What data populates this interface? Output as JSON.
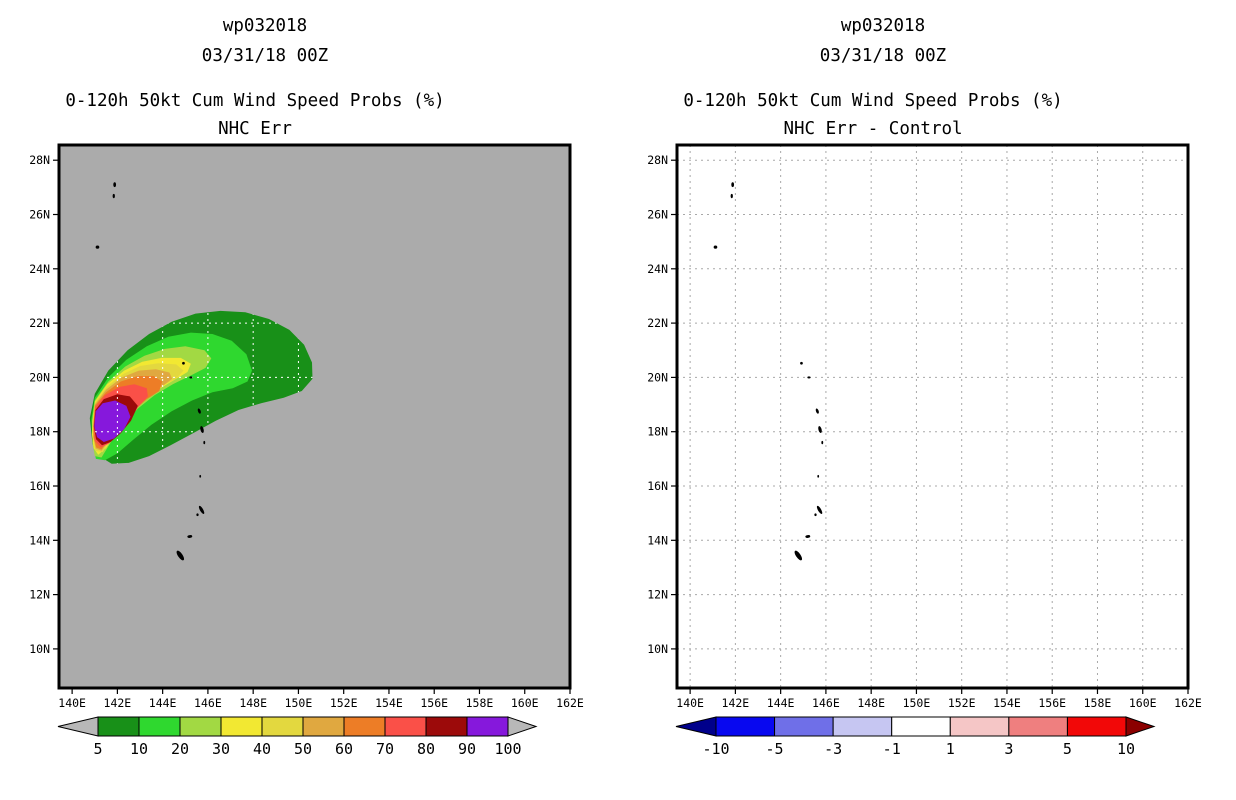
{
  "panels": [
    {
      "storm_id": "wp032018",
      "datetime": "03/31/18 00Z",
      "subtitle": "0-120h 50kt Cum Wind Speed Probs (%)",
      "subtitle2": "NHC Err"
    },
    {
      "storm_id": "wp032018",
      "datetime": "03/31/18 00Z",
      "subtitle": "0-120h 50kt Cum Wind Speed Probs (%)",
      "subtitle2": "NHC Err - Control"
    }
  ],
  "islands": [
    [
      141.88,
      27.1,
      0.12,
      0.18,
      0
    ],
    [
      141.84,
      26.68,
      0.1,
      0.16,
      0
    ],
    [
      141.12,
      24.8,
      0.16,
      0.12,
      0
    ],
    [
      144.92,
      20.52,
      0.12,
      0.1,
      0
    ],
    [
      145.25,
      20.0,
      0.14,
      0.08,
      0
    ],
    [
      145.62,
      18.76,
      0.12,
      0.2,
      -20
    ],
    [
      145.74,
      18.08,
      0.14,
      0.26,
      -15
    ],
    [
      145.84,
      17.6,
      0.08,
      0.12,
      0
    ],
    [
      145.66,
      16.36,
      0.08,
      0.1,
      0
    ],
    [
      145.72,
      15.12,
      0.14,
      0.34,
      -30
    ],
    [
      145.54,
      14.94,
      0.1,
      0.1,
      0
    ],
    [
      145.2,
      14.14,
      0.22,
      0.1,
      -10
    ],
    [
      144.78,
      13.44,
      0.2,
      0.42,
      -35
    ]
  ],
  "chart_data": [
    {
      "type": "contour_map",
      "title": "NHC Err",
      "units": "%",
      "lon_range": [
        139.42,
        162.0
      ],
      "lat_range": [
        8.56,
        28.56
      ],
      "lon_ticks": {
        "values": [
          140,
          142,
          144,
          146,
          148,
          150,
          152,
          154,
          156,
          158,
          160,
          162
        ],
        "labels": [
          "140E",
          "142E",
          "144E",
          "146E",
          "148E",
          "150E",
          "152E",
          "154E",
          "156E",
          "158E",
          "160E",
          "162E"
        ]
      },
      "lat_ticks": {
        "values": [
          10,
          12,
          14,
          16,
          18,
          20,
          22,
          24,
          26,
          28
        ],
        "labels": [
          "10N",
          "12N",
          "14N",
          "16N",
          "18N",
          "20N",
          "22N",
          "24N",
          "26N",
          "28N"
        ]
      },
      "background": "#ababab",
      "gridline_color": "#ffffff",
      "gridlines_clipped_to_contours": true,
      "contour_levels": [
        {
          "level": 5,
          "color": "#189018",
          "polygon": [
            [
              140.78,
              18.5
            ],
            [
              141.0,
              19.4
            ],
            [
              141.6,
              20.25
            ],
            [
              142.45,
              21.0
            ],
            [
              143.4,
              21.6
            ],
            [
              144.4,
              22.05
            ],
            [
              145.45,
              22.35
            ],
            [
              146.55,
              22.45
            ],
            [
              147.65,
              22.4
            ],
            [
              148.7,
              22.15
            ],
            [
              149.6,
              21.75
            ],
            [
              150.25,
              21.2
            ],
            [
              150.6,
              20.55
            ],
            [
              150.62,
              19.95
            ],
            [
              150.15,
              19.5
            ],
            [
              149.35,
              19.25
            ],
            [
              148.35,
              19.05
            ],
            [
              147.35,
              18.8
            ],
            [
              146.35,
              18.4
            ],
            [
              145.35,
              17.95
            ],
            [
              144.35,
              17.5
            ],
            [
              143.4,
              17.1
            ],
            [
              142.5,
              16.85
            ],
            [
              141.75,
              16.82
            ],
            [
              141.2,
              17.1
            ],
            [
              140.9,
              17.55
            ]
          ]
        },
        {
          "level": 10,
          "color": "#2fd82f",
          "polygon": [
            [
              140.85,
              18.45
            ],
            [
              141.0,
              19.25
            ],
            [
              141.6,
              20.0
            ],
            [
              142.4,
              20.65
            ],
            [
              143.3,
              21.15
            ],
            [
              144.25,
              21.5
            ],
            [
              145.25,
              21.65
            ],
            [
              146.2,
              21.6
            ],
            [
              147.05,
              21.35
            ],
            [
              147.7,
              20.85
            ],
            [
              147.95,
              20.25
            ],
            [
              147.75,
              19.85
            ],
            [
              147.1,
              19.6
            ],
            [
              146.2,
              19.45
            ],
            [
              145.3,
              19.15
            ],
            [
              144.4,
              18.75
            ],
            [
              143.5,
              18.25
            ],
            [
              142.7,
              17.7
            ],
            [
              142.0,
              17.2
            ],
            [
              141.45,
              16.95
            ],
            [
              141.05,
              17.0
            ],
            [
              140.92,
              17.5
            ]
          ]
        },
        {
          "level": 20,
          "color": "#a2d943",
          "polygon": [
            [
              140.88,
              18.4
            ],
            [
              141.0,
              19.15
            ],
            [
              141.6,
              19.85
            ],
            [
              142.35,
              20.4
            ],
            [
              143.2,
              20.8
            ],
            [
              144.1,
              21.05
            ],
            [
              145.0,
              21.15
            ],
            [
              145.85,
              21.0
            ],
            [
              146.15,
              20.7
            ],
            [
              145.9,
              20.35
            ],
            [
              145.2,
              20.05
            ],
            [
              144.45,
              19.75
            ],
            [
              143.65,
              19.35
            ],
            [
              142.9,
              18.85
            ],
            [
              142.2,
              18.2
            ],
            [
              141.7,
              17.6
            ],
            [
              141.3,
              17.05
            ],
            [
              141.0,
              17.1
            ],
            [
              140.9,
              17.6
            ]
          ]
        },
        {
          "level": 30,
          "color": "#f2e832",
          "polygon": [
            [
              140.9,
              18.35
            ],
            [
              141.0,
              19.1
            ],
            [
              141.55,
              19.75
            ],
            [
              142.3,
              20.25
            ],
            [
              143.1,
              20.58
            ],
            [
              143.95,
              20.72
            ],
            [
              144.8,
              20.72
            ],
            [
              145.25,
              20.5
            ],
            [
              145.1,
              20.2
            ],
            [
              144.5,
              19.9
            ],
            [
              143.8,
              19.55
            ],
            [
              143.1,
              19.1
            ],
            [
              142.5,
              18.6
            ],
            [
              141.95,
              18.0
            ],
            [
              141.5,
              17.4
            ],
            [
              141.15,
              17.15
            ],
            [
              140.95,
              17.4
            ],
            [
              140.88,
              17.9
            ]
          ]
        },
        {
          "level": 40,
          "color": "#e3d83f",
          "polygon": [
            [
              140.92,
              18.3
            ],
            [
              141.0,
              19.05
            ],
            [
              141.52,
              19.65
            ],
            [
              142.25,
              20.12
            ],
            [
              143.0,
              20.42
            ],
            [
              143.8,
              20.52
            ],
            [
              144.6,
              20.48
            ],
            [
              144.92,
              20.25
            ],
            [
              144.6,
              19.95
            ],
            [
              144.0,
              19.7
            ],
            [
              143.45,
              19.4
            ],
            [
              142.85,
              18.95
            ],
            [
              142.3,
              18.35
            ],
            [
              141.8,
              17.85
            ],
            [
              141.35,
              17.25
            ],
            [
              141.02,
              17.3
            ],
            [
              140.93,
              17.75
            ]
          ]
        },
        {
          "level": 50,
          "color": "#e0a840",
          "polygon": [
            [
              140.93,
              18.25
            ],
            [
              141.0,
              19.0
            ],
            [
              141.5,
              19.55
            ],
            [
              142.2,
              20.0
            ],
            [
              142.95,
              20.25
            ],
            [
              143.7,
              20.3
            ],
            [
              144.3,
              20.18
            ],
            [
              144.42,
              19.95
            ],
            [
              143.95,
              19.65
            ],
            [
              143.4,
              19.32
            ],
            [
              142.8,
              18.9
            ],
            [
              142.25,
              18.3
            ],
            [
              141.75,
              17.8
            ],
            [
              141.3,
              17.3
            ],
            [
              141.04,
              17.38
            ],
            [
              140.94,
              17.8
            ]
          ]
        },
        {
          "level": 60,
          "color": "#ed7d26",
          "polygon": [
            [
              140.94,
              18.2
            ],
            [
              141.0,
              18.95
            ],
            [
              141.5,
              19.45
            ],
            [
              142.15,
              19.85
            ],
            [
              142.9,
              20.05
            ],
            [
              143.6,
              20.05
            ],
            [
              143.98,
              19.85
            ],
            [
              143.85,
              19.5
            ],
            [
              143.3,
              19.2
            ],
            [
              142.75,
              18.8
            ],
            [
              142.2,
              18.25
            ],
            [
              141.7,
              17.8
            ],
            [
              141.3,
              17.35
            ],
            [
              141.07,
              17.42
            ],
            [
              140.95,
              17.8
            ]
          ]
        },
        {
          "level": 70,
          "color": "#fa5048",
          "polygon": [
            [
              140.95,
              18.2
            ],
            [
              141.02,
              18.9
            ],
            [
              141.45,
              19.35
            ],
            [
              142.1,
              19.65
            ],
            [
              142.75,
              19.75
            ],
            [
              143.3,
              19.6
            ],
            [
              143.35,
              19.3
            ],
            [
              142.9,
              18.9
            ],
            [
              142.5,
              18.35
            ],
            [
              142.05,
              17.9
            ],
            [
              141.6,
              17.55
            ],
            [
              141.27,
              17.42
            ],
            [
              141.02,
              17.65
            ]
          ]
        },
        {
          "level": 80,
          "color": "#9c0a0a",
          "polygon": [
            [
              140.96,
              18.2
            ],
            [
              141.03,
              18.8
            ],
            [
              141.4,
              19.2
            ],
            [
              142.0,
              19.38
            ],
            [
              142.55,
              19.3
            ],
            [
              142.9,
              18.95
            ],
            [
              142.6,
              18.4
            ],
            [
              142.15,
              17.95
            ],
            [
              141.7,
              17.62
            ],
            [
              141.32,
              17.5
            ],
            [
              141.06,
              17.72
            ]
          ]
        },
        {
          "level": 90,
          "color": "#8618dc",
          "polygon": [
            [
              140.98,
              18.2
            ],
            [
              141.04,
              18.75
            ],
            [
              141.35,
              19.05
            ],
            [
              141.9,
              19.15
            ],
            [
              142.4,
              18.95
            ],
            [
              142.58,
              18.55
            ],
            [
              142.3,
              18.1
            ],
            [
              141.85,
              17.75
            ],
            [
              141.4,
              17.62
            ],
            [
              141.1,
              17.8
            ]
          ]
        }
      ],
      "colorbar": {
        "labels": [
          "5",
          "10",
          "20",
          "30",
          "40",
          "50",
          "60",
          "70",
          "80",
          "90",
          "100"
        ],
        "colors": [
          "#189018",
          "#2fd82f",
          "#a2d943",
          "#f2e832",
          "#e3d83f",
          "#e0a840",
          "#ed7d26",
          "#fa5048",
          "#9c0a0a",
          "#8618dc"
        ],
        "arrow_left_color": "#b8b8b8",
        "arrow_right_color": "#b8b8b8"
      }
    },
    {
      "type": "contour_map",
      "title": "NHC Err - Control",
      "units": "%",
      "lon_range": [
        139.42,
        162.0
      ],
      "lat_range": [
        8.56,
        28.56
      ],
      "lon_ticks": {
        "values": [
          140,
          142,
          144,
          146,
          148,
          150,
          152,
          154,
          156,
          158,
          160,
          162
        ],
        "labels": [
          "140E",
          "142E",
          "144E",
          "146E",
          "148E",
          "150E",
          "152E",
          "154E",
          "156E",
          "158E",
          "160E",
          "162E"
        ]
      },
      "lat_ticks": {
        "values": [
          10,
          12,
          14,
          16,
          18,
          20,
          22,
          24,
          26,
          28
        ],
        "labels": [
          "10N",
          "12N",
          "14N",
          "16N",
          "18N",
          "20N",
          "22N",
          "24N",
          "26N",
          "28N"
        ]
      },
      "background": "#ffffff",
      "gridline_color": "#a8a8a8",
      "gridlines_clipped_to_contours": false,
      "contour_levels": [],
      "colorbar": {
        "labels": [
          "-10",
          "-5",
          "-3",
          "-1",
          "1",
          "3",
          "5",
          "10"
        ],
        "colors": [
          "#0808f0",
          "#6f6fe8",
          "#c6c6f2",
          "#ffffff",
          "#f5c6c6",
          "#ef7f7f",
          "#f20808"
        ],
        "arrow_left_color": "#00008b",
        "arrow_right_color": "#8b0000"
      }
    }
  ]
}
